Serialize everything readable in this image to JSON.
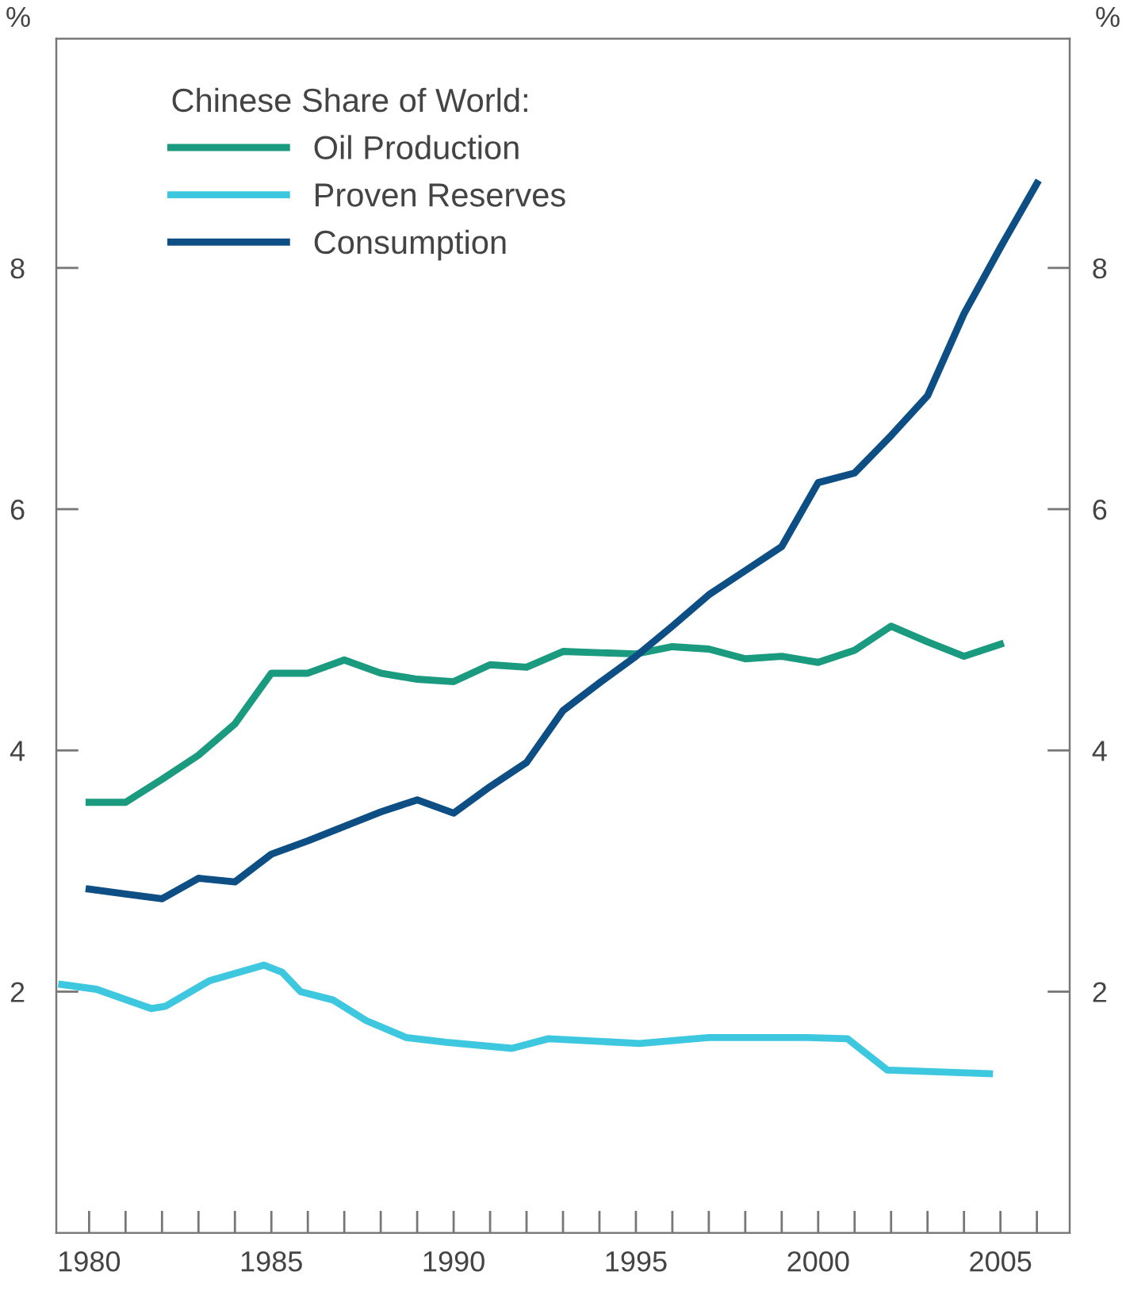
{
  "chart_data": {
    "type": "line",
    "legend_title": "Chinese Share of World:",
    "ylabel": "%",
    "y2label": "%",
    "xlim": [
      1979.1,
      2006.9
    ],
    "xticks": [
      1980,
      {
        "value": 1981,
        "label": null
      },
      {
        "value": 1982,
        "label": null
      },
      {
        "value": 1983,
        "label": null
      },
      {
        "value": 1984,
        "label": null
      },
      1985,
      {
        "value": 1986,
        "label": null
      },
      {
        "value": 1987,
        "label": null
      },
      {
        "value": 1988,
        "label": null
      },
      {
        "value": 1989,
        "label": null
      },
      1990,
      {
        "value": 1991,
        "label": null
      },
      {
        "value": 1992,
        "label": null
      },
      {
        "value": 1993,
        "label": null
      },
      {
        "value": 1994,
        "label": null
      },
      1995,
      {
        "value": 1996,
        "label": null
      },
      {
        "value": 1997,
        "label": null
      },
      {
        "value": 1998,
        "label": null
      },
      {
        "value": 1999,
        "label": null
      },
      2000,
      {
        "value": 2001,
        "label": null
      },
      {
        "value": 2002,
        "label": null
      },
      {
        "value": 2003,
        "label": null
      },
      {
        "value": 2004,
        "label": null
      },
      2005,
      {
        "value": 2006,
        "label": null
      }
    ],
    "ylim": [
      0,
      9.9
    ],
    "yticks": [
      2,
      4,
      6,
      8
    ],
    "y2lim": [
      0,
      9.9
    ],
    "y2ticks": [
      2,
      4,
      6,
      8
    ],
    "grid": false,
    "legend": "top left",
    "marker": "none",
    "line_style": "solid",
    "series": [
      {
        "name": "Oil Production",
        "color": "#1a9a7e",
        "x": [
          1980,
          1981,
          1982,
          1983,
          1984,
          1985,
          1986,
          1987,
          1988,
          1989,
          1990,
          1991,
          1992,
          1993,
          1994,
          1995,
          1996,
          1997,
          1998,
          1999,
          2000,
          2001,
          2002,
          2003,
          2004,
          2005
        ],
        "values": [
          3.57,
          3.57,
          3.76,
          3.96,
          4.22,
          4.64,
          4.64,
          4.75,
          4.64,
          4.59,
          4.57,
          4.71,
          4.69,
          4.82,
          4.81,
          4.8,
          4.86,
          4.84,
          4.76,
          4.78,
          4.73,
          4.83,
          5.03,
          4.9,
          4.78,
          4.88
        ]
      },
      {
        "name": "Proven Reserves",
        "color": "#3ec8e0",
        "x": [
          1979.25,
          1980.2,
          1981.7,
          1982.1,
          1983.3,
          1984.8,
          1985.3,
          1985.8,
          1986.7,
          1987.6,
          1988.7,
          1989.8,
          1991.6,
          1992.6,
          1995.1,
          1997.0,
          1999.7,
          2000.8,
          2001.9,
          2004.7
        ],
        "values": [
          2.06,
          2.02,
          1.86,
          1.88,
          2.09,
          2.22,
          2.16,
          2.0,
          1.93,
          1.76,
          1.62,
          1.58,
          1.53,
          1.61,
          1.57,
          1.62,
          1.62,
          1.61,
          1.35,
          1.32
        ]
      },
      {
        "name": "Consumption",
        "color": "#0d4f85",
        "x": [
          1980,
          1981,
          1982,
          1983,
          1984,
          1985,
          1986,
          1987,
          1988,
          1989,
          1990,
          1991,
          1992,
          1993,
          1994,
          1995,
          1996,
          1997,
          1998,
          1999,
          2000,
          2001,
          2002,
          2003,
          2004,
          2005,
          2006
        ],
        "values": [
          2.85,
          2.81,
          2.77,
          2.94,
          2.91,
          3.14,
          3.25,
          3.37,
          3.49,
          3.59,
          3.48,
          3.7,
          3.9,
          4.33,
          4.56,
          4.78,
          5.03,
          5.29,
          5.49,
          5.69,
          6.22,
          6.3,
          6.61,
          6.94,
          7.62,
          8.17,
          8.7
        ]
      }
    ]
  }
}
